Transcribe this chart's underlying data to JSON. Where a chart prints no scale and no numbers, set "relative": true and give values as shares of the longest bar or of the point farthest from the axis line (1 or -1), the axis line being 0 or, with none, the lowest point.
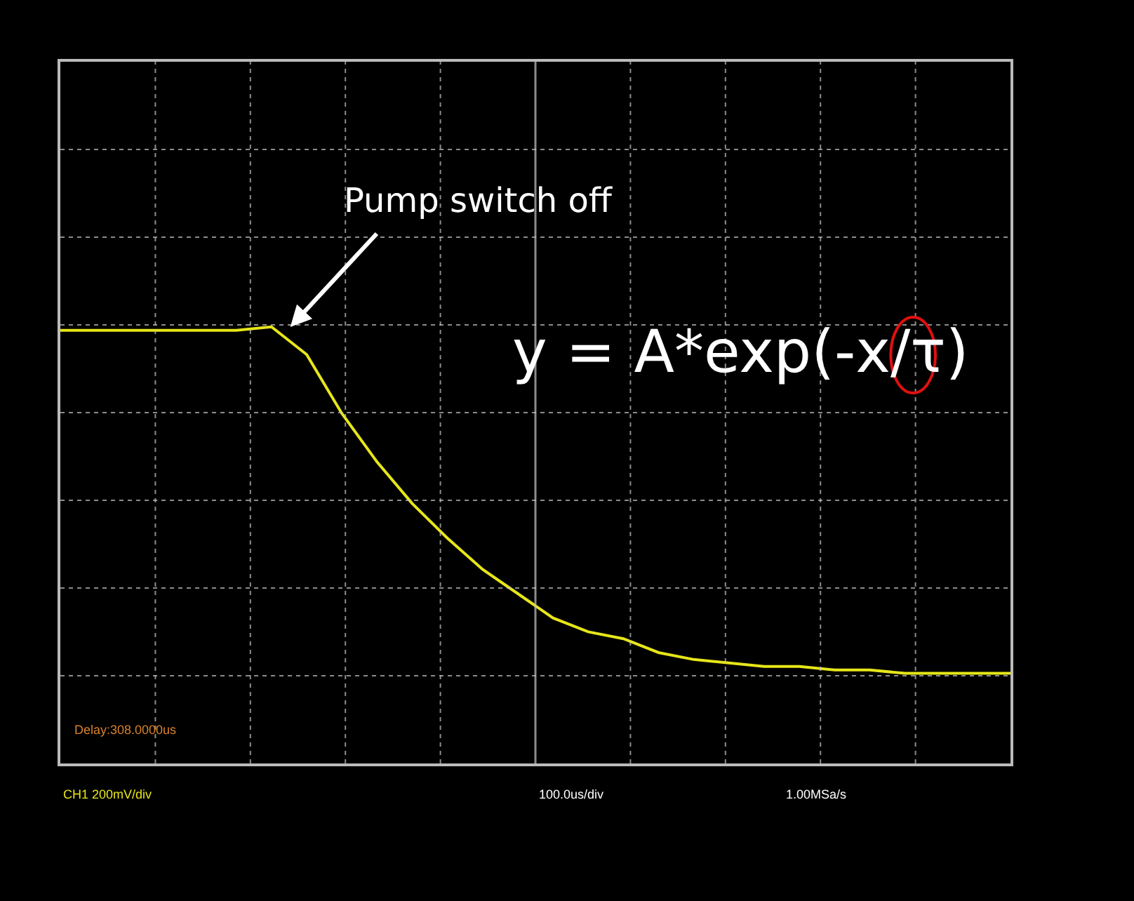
{
  "chart_data": {
    "type": "line",
    "relative": true,
    "grid": true,
    "marker": "none",
    "line_style": "solid",
    "categories": [
      null,
      null,
      null,
      null,
      null,
      null,
      null,
      null,
      null,
      null,
      null,
      null,
      null,
      null,
      null,
      null,
      null,
      null,
      null,
      null,
      null,
      null,
      null,
      null,
      null,
      null,
      null,
      null
    ],
    "series": [
      {
        "color": "#e6e619",
        "values": [
          0.99,
          0.99,
          0.99,
          0.99,
          0.99,
          0.99,
          1,
          0.92,
          0.75,
          0.61,
          0.49,
          0.39,
          0.3,
          0.23,
          0.16,
          0.12,
          0.1,
          0.06,
          0.04,
          0.03,
          0.02,
          0.02,
          0.01,
          0.01,
          0,
          0,
          0,
          0
        ]
      }
    ],
    "annotations": [
      "Pump switch off",
      "y = A*exp(-x/τ)",
      "Delay:308.0000us",
      "CH1 200mV/div",
      "100.0us/div",
      "1.00MSa/s"
    ]
  }
}
